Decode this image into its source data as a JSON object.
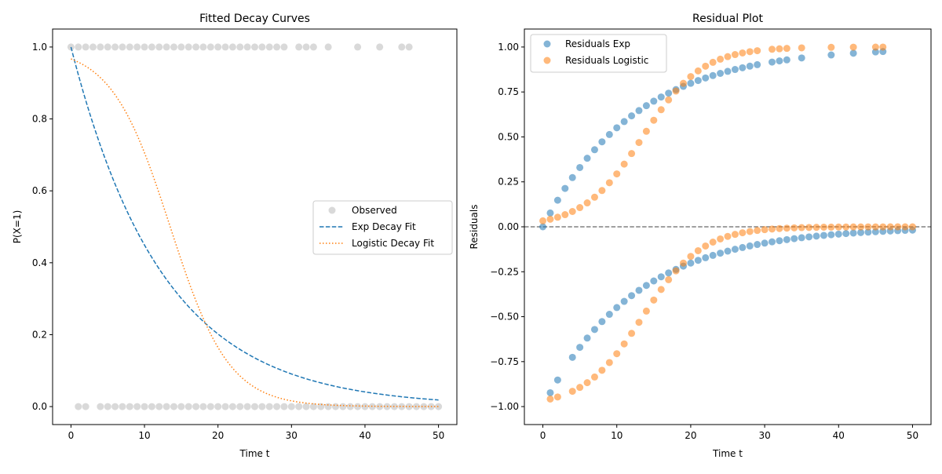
{
  "figure": {
    "background": "#ffffff"
  },
  "chart_data": [
    {
      "id": "fitted",
      "type": "scatter",
      "title": "Fitted Decay Curves",
      "xlabel": "Time t",
      "ylabel": "P(X=1)",
      "xlim": [
        -2.5,
        52.5
      ],
      "ylim": [
        -0.05,
        1.05
      ],
      "xticks": [
        0,
        10,
        20,
        30,
        40,
        50
      ],
      "yticks": [
        0.0,
        0.2,
        0.4,
        0.6,
        0.8,
        1.0
      ],
      "xtick_labels": [
        "0",
        "10",
        "20",
        "30",
        "40",
        "50"
      ],
      "ytick_labels": [
        "0.0",
        "0.2",
        "0.4",
        "0.6",
        "0.8",
        "1.0"
      ],
      "grid": false,
      "legend": {
        "position": "center-right"
      },
      "series": [
        {
          "name": "Observed",
          "kind": "scatter",
          "color": "#808080",
          "opacity": 0.3,
          "points_y1": [
            0,
            1,
            2,
            3,
            4,
            5,
            6,
            7,
            8,
            9,
            10,
            11,
            12,
            13,
            14,
            15,
            16,
            17,
            18,
            19,
            20,
            21,
            22,
            23,
            24,
            25,
            26,
            27,
            28,
            29,
            31,
            32,
            33,
            35,
            39,
            42,
            45,
            46
          ],
          "points_y0": [
            1,
            2,
            4,
            5,
            6,
            7,
            8,
            9,
            10,
            11,
            12,
            13,
            14,
            15,
            16,
            17,
            18,
            19,
            20,
            21,
            22,
            23,
            24,
            25,
            26,
            27,
            28,
            29,
            30,
            31,
            32,
            33,
            34,
            35,
            36,
            37,
            38,
            39,
            40,
            41,
            42,
            43,
            44,
            45,
            46,
            47,
            48,
            49,
            50
          ]
        },
        {
          "name": "Exp Decay Fit",
          "kind": "line",
          "style": "dashed",
          "color": "#1f77b4",
          "params": {
            "a": 1.0,
            "k": 0.08
          }
        },
        {
          "name": "Logistic Decay Fit",
          "kind": "line",
          "style": "dotted",
          "color": "#ff7f0e",
          "params": {
            "k": 0.25,
            "t0": 13.5
          }
        }
      ]
    },
    {
      "id": "residuals",
      "type": "scatter",
      "title": "Residual Plot",
      "xlabel": "Time t",
      "ylabel": "Residuals",
      "xlim": [
        -2.5,
        52.5
      ],
      "ylim": [
        -1.1,
        1.1
      ],
      "xticks": [
        0,
        10,
        20,
        30,
        40,
        50
      ],
      "yticks": [
        -1.0,
        -0.75,
        -0.5,
        -0.25,
        0.0,
        0.25,
        0.5,
        0.75,
        1.0
      ],
      "xtick_labels": [
        "0",
        "10",
        "20",
        "30",
        "40",
        "50"
      ],
      "ytick_labels": [
        "−1.00",
        "−0.75",
        "−0.50",
        "−0.25",
        "0.00",
        "0.25",
        "0.50",
        "0.75",
        "1.00"
      ],
      "grid": false,
      "reference_line": {
        "y": 0,
        "style": "dashed",
        "color": "#808080"
      },
      "legend": {
        "position": "top-left"
      },
      "series": [
        {
          "name": "Residuals Exp",
          "kind": "scatter",
          "color": "#1f77b4",
          "opacity": 0.55
        },
        {
          "name": "Residuals Logistic",
          "kind": "scatter",
          "color": "#ff7f0e",
          "opacity": 0.55
        }
      ]
    }
  ]
}
